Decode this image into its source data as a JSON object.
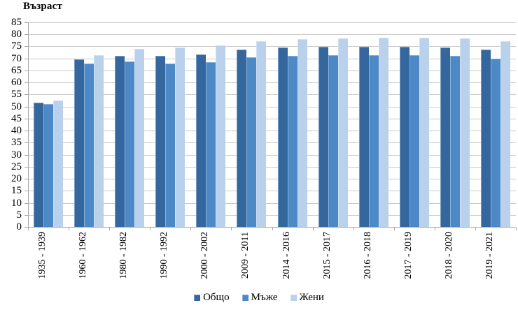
{
  "chart_data": {
    "type": "bar",
    "ylabel": "Възраст",
    "categories": [
      "1935 - 1939",
      "1960 - 1962",
      "1980 - 1982",
      "1990 - 1992",
      "2000 - 2002",
      "2009 - 2011",
      "2014 - 2016",
      "2015 - 2017",
      "2016 - 2018",
      "2017 - 2019",
      "2018 - 2020",
      "2019 - 2021"
    ],
    "series": [
      {
        "name": "Общо",
        "color": "#35679F",
        "values": [
          51.7,
          69.6,
          71.2,
          71.2,
          71.8,
          73.8,
          74.7,
          74.8,
          74.8,
          74.9,
          74.6,
          73.6
        ]
      },
      {
        "name": "Мъже",
        "color": "#4D88C7",
        "values": [
          51.0,
          67.8,
          68.7,
          68.0,
          68.5,
          70.6,
          71.2,
          71.3,
          71.4,
          71.5,
          71.1,
          69.9
        ]
      },
      {
        "name": "Жени",
        "color": "#B9D1EA",
        "values": [
          52.6,
          71.4,
          73.9,
          74.7,
          75.3,
          77.2,
          78.1,
          78.4,
          78.5,
          78.6,
          78.3,
          77.3
        ]
      }
    ],
    "ylim": [
      0,
      85
    ],
    "ytick_step": 5,
    "grid": "horizontal",
    "legend_position": "bottom-center",
    "grid_color": "#c9c9c9",
    "axis_color": "#a6a6a6",
    "background": "#ffffff"
  }
}
